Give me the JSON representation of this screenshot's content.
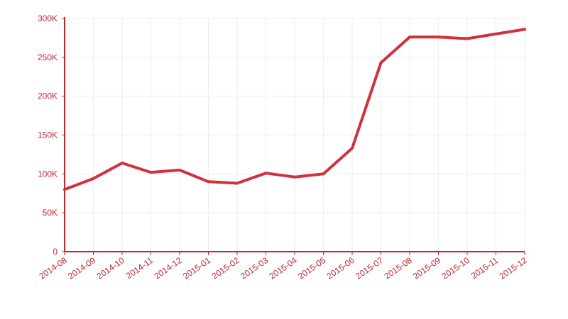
{
  "chart_data": {
    "type": "line",
    "x": [
      "2014-08",
      "2014-09",
      "2014-10",
      "2014-11",
      "2014-12",
      "2015-01",
      "2015-02",
      "2015-03",
      "2015-04",
      "2015-05",
      "2015-06",
      "2015-07",
      "2015-08",
      "2015-09",
      "2015-10",
      "2015-11",
      "2015-12"
    ],
    "series": [
      {
        "values": [
          80000,
          94000,
          114000,
          102000,
          105000,
          90000,
          88000,
          101000,
          96000,
          100000,
          133000,
          243000,
          276000,
          276000,
          274000,
          280000,
          286000
        ]
      }
    ],
    "ylim": [
      0,
      300000
    ],
    "yticks": [
      0,
      50000,
      100000,
      150000,
      200000,
      250000,
      300000
    ],
    "ytick_labels": [
      "0",
      "50K",
      "100K",
      "150K",
      "200K",
      "250K",
      "300K"
    ],
    "grid": true,
    "colors": {
      "line": "#d2303a",
      "axis": "#c1272d",
      "label": "#c1272d",
      "grid": "#eeeeee"
    }
  }
}
